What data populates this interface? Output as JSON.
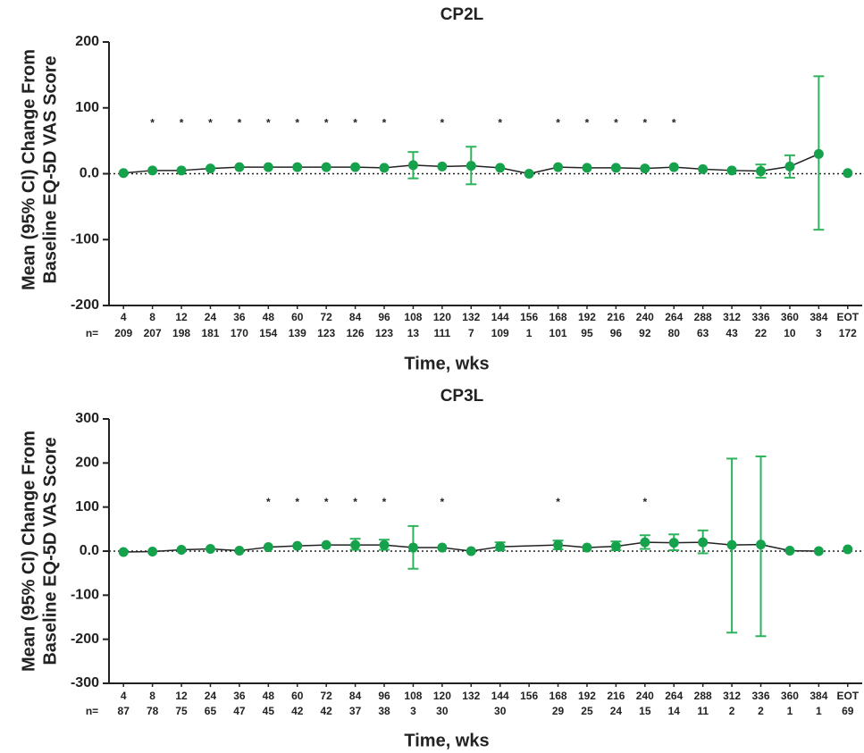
{
  "chart_data": [
    {
      "type": "errorbar-line",
      "title": "CP2L",
      "ylabel": [
        "Mean (95% CI) Change From",
        "Baseline EQ-5D VAS Score"
      ],
      "xlabel": "Time, wks",
      "n_label": "n=",
      "categories": [
        "4",
        "8",
        "12",
        "24",
        "36",
        "48",
        "60",
        "72",
        "84",
        "96",
        "108",
        "120",
        "132",
        "144",
        "156",
        "168",
        "192",
        "216",
        "240",
        "264",
        "288",
        "312",
        "336",
        "360",
        "384",
        "EOT"
      ],
      "n": [
        "209",
        "207",
        "198",
        "181",
        "170",
        "154",
        "139",
        "123",
        "126",
        "123",
        "13",
        "111",
        "7",
        "109",
        "1",
        "101",
        "95",
        "96",
        "92",
        "80",
        "63",
        "43",
        "22",
        "10",
        "3",
        "172"
      ],
      "significance": [
        null,
        "*",
        "*",
        "*",
        "*",
        "*",
        "*",
        "*",
        "*",
        "*",
        null,
        "*",
        null,
        "*",
        null,
        "*",
        "*",
        "*",
        "*",
        "*",
        null,
        null,
        null,
        null,
        null,
        null
      ],
      "series": [
        {
          "color": "#16a24c",
          "bar_color": "#2db35c",
          "values": [
            1,
            5,
            5,
            8,
            10,
            10,
            10,
            10,
            10,
            9,
            13,
            11,
            12,
            9,
            0,
            10,
            9,
            9,
            8,
            10,
            7,
            5,
            4,
            11,
            30,
            1
          ],
          "lower": [
            null,
            null,
            null,
            null,
            null,
            null,
            null,
            null,
            null,
            null,
            -7,
            null,
            -16,
            null,
            null,
            null,
            null,
            null,
            null,
            null,
            null,
            null,
            -6,
            -6,
            -85,
            null
          ],
          "upper": [
            null,
            null,
            null,
            null,
            null,
            null,
            null,
            null,
            null,
            null,
            33,
            null,
            41,
            null,
            null,
            null,
            null,
            null,
            null,
            null,
            null,
            null,
            14,
            28,
            148,
            null
          ]
        }
      ],
      "reference_line": 0,
      "ylim": [
        -200,
        200
      ],
      "yticks": [
        -200,
        -100,
        {
          "value": 0,
          "label": "0.0"
        },
        100,
        200
      ]
    },
    {
      "type": "errorbar-line",
      "title": "CP3L",
      "ylabel": [
        "Mean (95% CI) Change From",
        "Baseline EQ-5D VAS Score"
      ],
      "xlabel": "Time, wks",
      "n_label": "n=",
      "categories": [
        "4",
        "8",
        "12",
        "24",
        "36",
        "48",
        "60",
        "72",
        "84",
        "96",
        "108",
        "120",
        "132",
        "144",
        "156",
        "168",
        "192",
        "216",
        "240",
        "264",
        "288",
        "312",
        "336",
        "360",
        "384",
        "EOT"
      ],
      "n": [
        "87",
        "78",
        "75",
        "65",
        "47",
        "45",
        "42",
        "42",
        "37",
        "38",
        "3",
        "30",
        null,
        "30",
        null,
        "29",
        "25",
        "24",
        "15",
        "14",
        "11",
        "2",
        "2",
        "1",
        "1",
        "69"
      ],
      "significance": [
        null,
        null,
        null,
        null,
        null,
        "*",
        "*",
        "*",
        "*",
        "*",
        null,
        "*",
        null,
        null,
        null,
        "*",
        null,
        null,
        "*",
        null,
        null,
        null,
        null,
        null,
        null,
        null
      ],
      "series": [
        {
          "color": "#16a24c",
          "bar_color": "#2db35c",
          "values": [
            -2,
            -1,
            3,
            5,
            1,
            9,
            12,
            14,
            14,
            14,
            8,
            8,
            0,
            10,
            null,
            14,
            8,
            11,
            20,
            19,
            20,
            14,
            15,
            1,
            0,
            4
          ],
          "lower": [
            null,
            null,
            null,
            null,
            null,
            null,
            null,
            null,
            3,
            3,
            -40,
            null,
            null,
            2,
            null,
            4,
            null,
            2,
            5,
            2,
            -5,
            -185,
            -193,
            null,
            null,
            null
          ],
          "upper": [
            null,
            null,
            null,
            null,
            null,
            null,
            null,
            null,
            28,
            26,
            57,
            null,
            null,
            20,
            null,
            24,
            null,
            22,
            36,
            38,
            47,
            210,
            215,
            null,
            null,
            null
          ]
        }
      ],
      "reference_line": 0,
      "ylim": [
        -300,
        300
      ],
      "yticks": [
        -300,
        -200,
        -100,
        {
          "value": 0,
          "label": "0.0"
        },
        100,
        200,
        300
      ]
    }
  ]
}
